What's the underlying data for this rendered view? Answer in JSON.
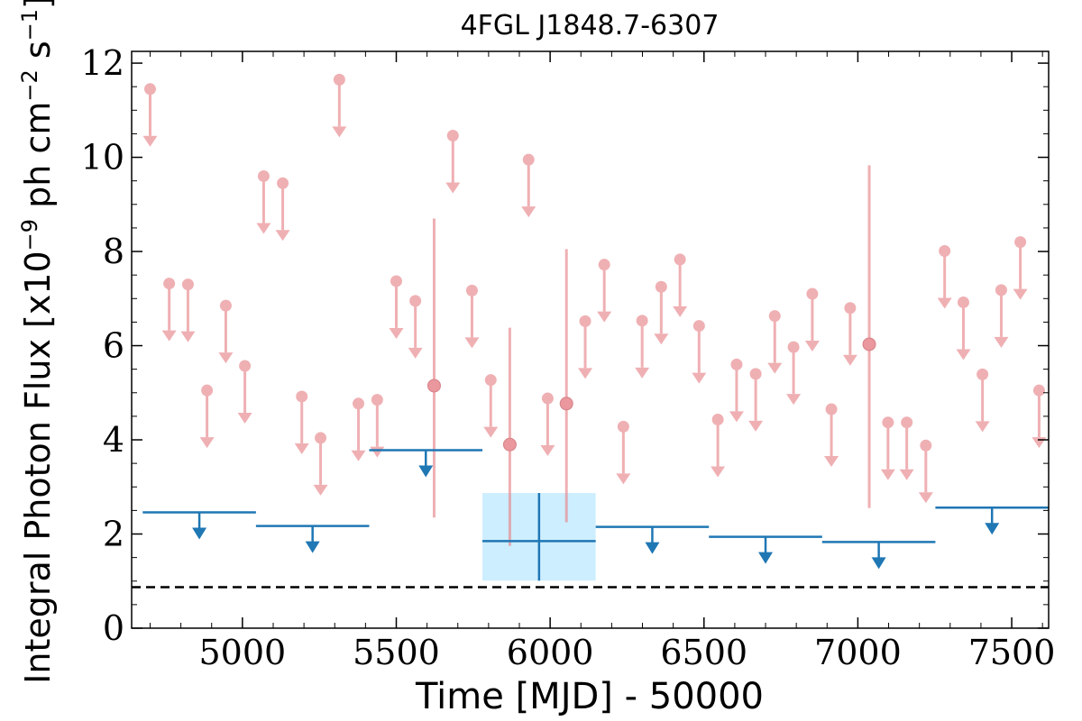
{
  "chart_data": {
    "type": "scatter",
    "title": "4FGL J1848.7-6307",
    "xlabel": "Time [MJD] - 50000",
    "ylabel": "Integral Photon Flux [x10",
    "ylabel_exp": "−9",
    "ylabel_mid": " ph cm",
    "ylabel_exp2": "−2",
    "ylabel_end": " s",
    "ylabel_exp3": "−1",
    "ylabel_close": "]",
    "xlim": [
      4640,
      7620
    ],
    "ylim": [
      0,
      12.25
    ],
    "x_ticks": [
      5000,
      5500,
      6000,
      6500,
      7000,
      7500
    ],
    "x_tick_labels": [
      "5000",
      "5500",
      "6000",
      "6500",
      "7000",
      "7500"
    ],
    "y_ticks": [
      0,
      2,
      4,
      6,
      8,
      10,
      12
    ],
    "y_tick_labels": [
      "0",
      "2",
      "4",
      "6",
      "8",
      "10",
      "12"
    ],
    "reference_line": {
      "y": 0.87,
      "style": "dashed"
    },
    "colors": {
      "short_bins": "#e8868c",
      "long_bins": "#1f77b4",
      "band": "#cdeeff",
      "reference": "#000000"
    },
    "short_upper_limits": [
      {
        "x": 4700,
        "y": 11.45
      },
      {
        "x": 4762,
        "y": 7.32
      },
      {
        "x": 4823,
        "y": 7.3
      },
      {
        "x": 4885,
        "y": 5.05
      },
      {
        "x": 4946,
        "y": 6.85
      },
      {
        "x": 5008,
        "y": 5.57
      },
      {
        "x": 5069,
        "y": 9.6
      },
      {
        "x": 5131,
        "y": 9.45
      },
      {
        "x": 5193,
        "y": 4.92
      },
      {
        "x": 5254,
        "y": 4.04
      },
      {
        "x": 5315,
        "y": 11.65
      },
      {
        "x": 5377,
        "y": 4.77
      },
      {
        "x": 5438,
        "y": 4.85
      },
      {
        "x": 5500,
        "y": 7.37
      },
      {
        "x": 5562,
        "y": 6.95
      },
      {
        "x": 5684,
        "y": 10.46
      },
      {
        "x": 5746,
        "y": 7.17
      },
      {
        "x": 5807,
        "y": 5.27
      },
      {
        "x": 5930,
        "y": 9.95
      },
      {
        "x": 5992,
        "y": 4.88
      },
      {
        "x": 6114,
        "y": 6.52
      },
      {
        "x": 6176,
        "y": 7.72
      },
      {
        "x": 6238,
        "y": 4.28
      },
      {
        "x": 6299,
        "y": 6.53
      },
      {
        "x": 6361,
        "y": 7.25
      },
      {
        "x": 6422,
        "y": 7.83
      },
      {
        "x": 6484,
        "y": 6.42
      },
      {
        "x": 6545,
        "y": 4.43
      },
      {
        "x": 6606,
        "y": 5.6
      },
      {
        "x": 6668,
        "y": 5.4
      },
      {
        "x": 6730,
        "y": 6.63
      },
      {
        "x": 6791,
        "y": 5.97
      },
      {
        "x": 6852,
        "y": 7.1
      },
      {
        "x": 6914,
        "y": 4.65
      },
      {
        "x": 6975,
        "y": 6.8
      },
      {
        "x": 7098,
        "y": 4.37
      },
      {
        "x": 7159,
        "y": 4.37
      },
      {
        "x": 7221,
        "y": 3.88
      },
      {
        "x": 7282,
        "y": 8.01
      },
      {
        "x": 7343,
        "y": 6.92
      },
      {
        "x": 7405,
        "y": 5.39
      },
      {
        "x": 7466,
        "y": 7.18
      },
      {
        "x": 7528,
        "y": 8.2
      },
      {
        "x": 7589,
        "y": 5.05
      }
    ],
    "short_detections": [
      {
        "x": 5623,
        "y": 5.15,
        "ylow": 2.35,
        "yhigh": 8.7
      },
      {
        "x": 5869,
        "y": 3.9,
        "ylow": 1.75,
        "yhigh": 6.38
      },
      {
        "x": 6053,
        "y": 4.77,
        "ylow": 2.25,
        "yhigh": 8.05
      },
      {
        "x": 7037,
        "y": 6.03,
        "ylow": 2.55,
        "yhigh": 9.83
      }
    ],
    "long_upper_limits": [
      {
        "x0": 4676,
        "x1": 5044,
        "y": 2.46
      },
      {
        "x0": 5044,
        "x1": 5412,
        "y": 2.17
      },
      {
        "x0": 5412,
        "x1": 5780,
        "y": 3.78
      },
      {
        "x0": 6148,
        "x1": 6516,
        "y": 2.15
      },
      {
        "x0": 6516,
        "x1": 6884,
        "y": 1.94
      },
      {
        "x0": 6884,
        "x1": 7252,
        "y": 1.83
      },
      {
        "x0": 7252,
        "x1": 7620,
        "y": 2.56
      }
    ],
    "long_detection": {
      "x0": 5780,
      "x1": 6148,
      "x": 5964,
      "y": 1.85,
      "ylow": 1.01,
      "yhigh": 2.87
    }
  }
}
